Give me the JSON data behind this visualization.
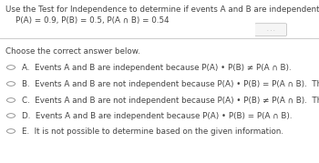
{
  "title_line1": "Use the Test for Independence to determine if events A and B are independent.",
  "title_line2": "    P(A) = 0.9, P(B) = 0.5, P(A ∩ B) = 0.54",
  "choose_label": "Choose the correct answer below.",
  "options": [
    "A.  Events A and B are independent because P(A) • P(B) ≠ P(A ∩ B).",
    "B.  Events A and B are not independent because P(A) • P(B) = P(A ∩ B).  They are dependent.",
    "C.  Events A and B are not independent because P(A) • P(B) ≠ P(A ∩ B).  They are dependent.",
    "D.  Events A and B are independent because P(A) • P(B) = P(A ∩ B).",
    "E.  It is not possible to determine based on the given information."
  ],
  "text_color": "#444444",
  "font_size_title": 6.3,
  "font_size_prob": 6.3,
  "font_size_choose": 6.3,
  "font_size_options": 6.3,
  "circle_color": "#888888",
  "divider_color": "#cccccc",
  "dots_color": "#999999"
}
